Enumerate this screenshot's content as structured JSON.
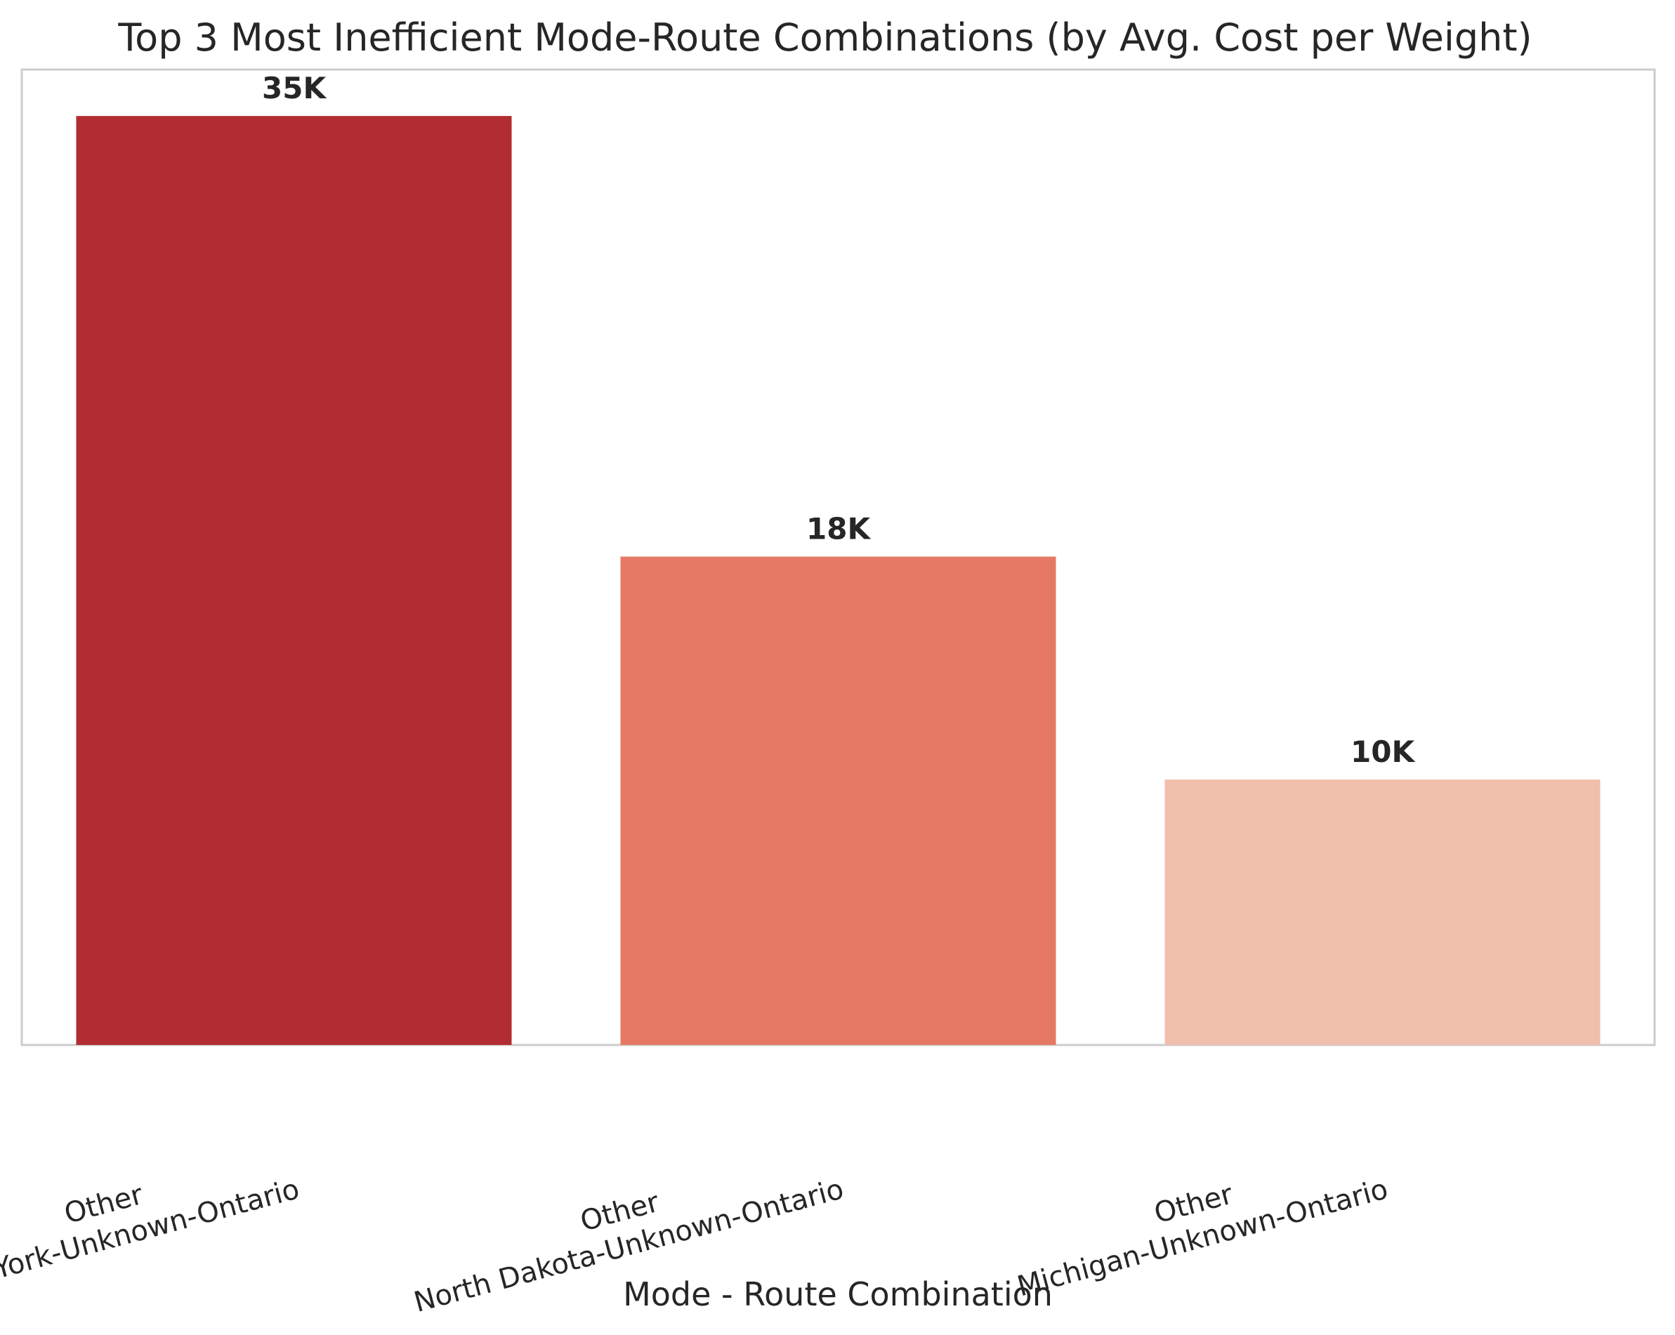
{
  "chart_data": {
    "type": "bar",
    "title": "Top 3 Most Inefficient Mode-Route Combinations (by Avg. Cost per Weight)",
    "xlabel": "Mode - Route Combination",
    "ylabel": "",
    "categories": [
      [
        "Other",
        "New York-Unknown-Ontario"
      ],
      [
        "Other",
        "North Dakota-Unknown-Ontario"
      ],
      [
        "Other",
        "Michigan-Unknown-Ontario"
      ]
    ],
    "values": [
      35000,
      18400,
      10000
    ],
    "value_labels": [
      "35K",
      "18K",
      "10K"
    ],
    "colors": [
      "#b22d31",
      "#e67963",
      "#f0c0ad"
    ],
    "ylim": [
      0,
      36750
    ],
    "grid": false,
    "y_ticks_visible": false,
    "frame_color": "#cccccc"
  }
}
